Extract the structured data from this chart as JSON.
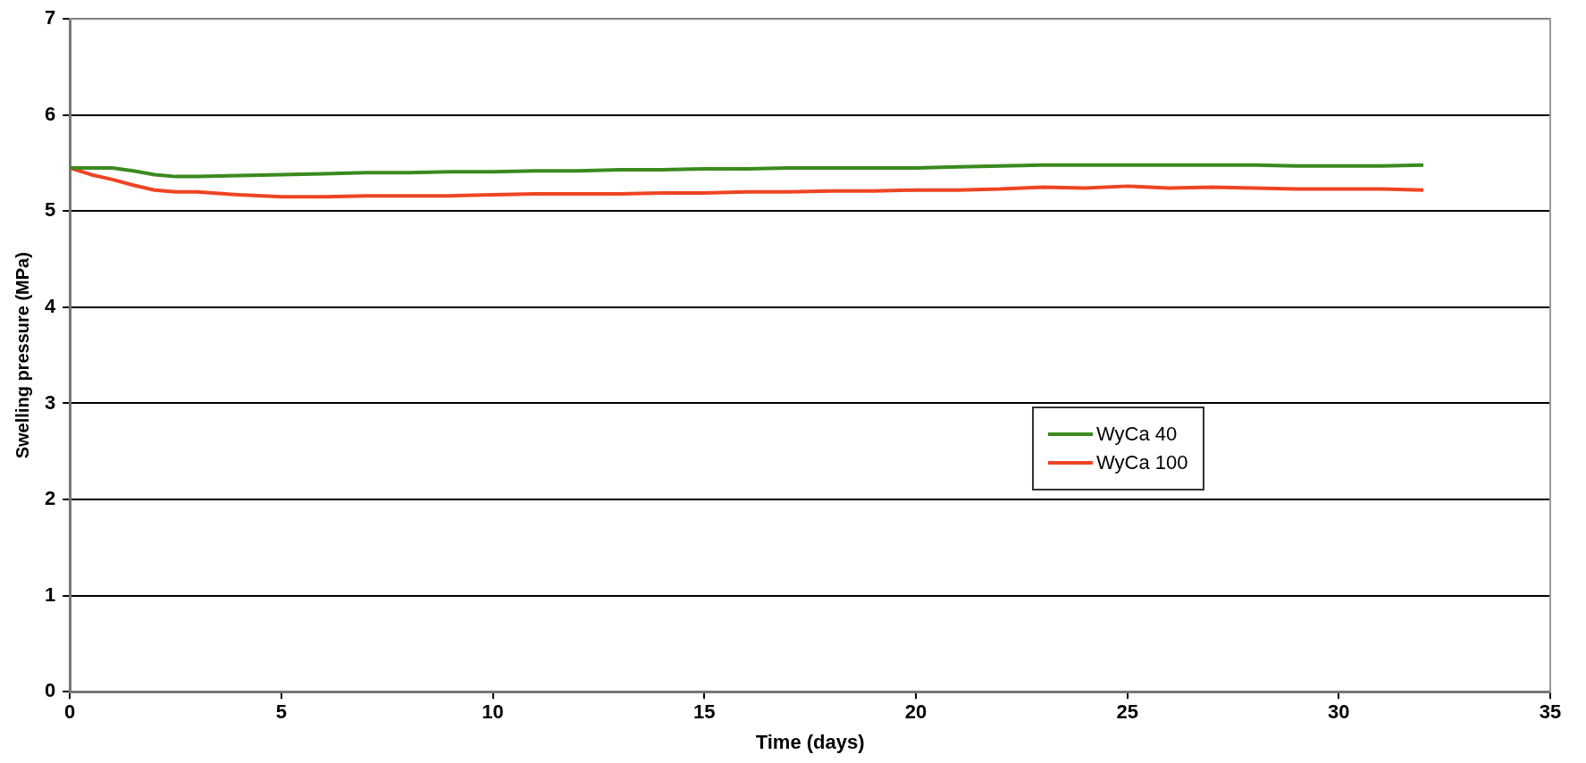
{
  "chart_data": {
    "type": "line",
    "xlabel": "Time (days)",
    "ylabel": "Swelling pressure (MPa)",
    "xlim": [
      0,
      35
    ],
    "xticks": [
      0,
      5,
      10,
      15,
      20,
      25,
      30,
      35
    ],
    "ylim": [
      0,
      7
    ],
    "yticks": [
      0,
      1,
      2,
      3,
      4,
      5,
      6,
      7
    ],
    "grid": "y",
    "legend": "right",
    "marker": "none",
    "line_style": "solid",
    "series": [
      {
        "name": "WyCa 40",
        "color": "#3a8a1e",
        "x": [
          0,
          0.5,
          1,
          1.5,
          2,
          2.5,
          3,
          4,
          5,
          6,
          7,
          8,
          9,
          10,
          11,
          12,
          13,
          14,
          15,
          16,
          17,
          18,
          19,
          20,
          21,
          22,
          23,
          24,
          25,
          26,
          27,
          28,
          29,
          30,
          31,
          32
        ],
        "values": [
          5.45,
          5.45,
          5.45,
          5.42,
          5.38,
          5.36,
          5.36,
          5.37,
          5.38,
          5.39,
          5.4,
          5.4,
          5.41,
          5.41,
          5.42,
          5.42,
          5.43,
          5.43,
          5.44,
          5.44,
          5.45,
          5.45,
          5.45,
          5.45,
          5.46,
          5.47,
          5.48,
          5.48,
          5.48,
          5.48,
          5.48,
          5.48,
          5.47,
          5.47,
          5.47,
          5.48
        ]
      },
      {
        "name": "WyCa 100",
        "color": "#ee4422",
        "x": [
          0,
          0.5,
          1,
          1.5,
          2,
          2.5,
          3,
          4,
          5,
          6,
          7,
          8,
          9,
          10,
          11,
          12,
          13,
          14,
          15,
          16,
          17,
          18,
          19,
          20,
          21,
          22,
          23,
          24,
          25,
          26,
          27,
          28,
          29,
          30,
          31,
          32
        ],
        "values": [
          5.45,
          5.38,
          5.33,
          5.27,
          5.22,
          5.2,
          5.2,
          5.17,
          5.15,
          5.15,
          5.16,
          5.16,
          5.16,
          5.17,
          5.18,
          5.18,
          5.18,
          5.19,
          5.19,
          5.2,
          5.2,
          5.21,
          5.21,
          5.22,
          5.22,
          5.23,
          5.25,
          5.24,
          5.26,
          5.24,
          5.25,
          5.24,
          5.23,
          5.23,
          5.23,
          5.22
        ]
      }
    ]
  }
}
